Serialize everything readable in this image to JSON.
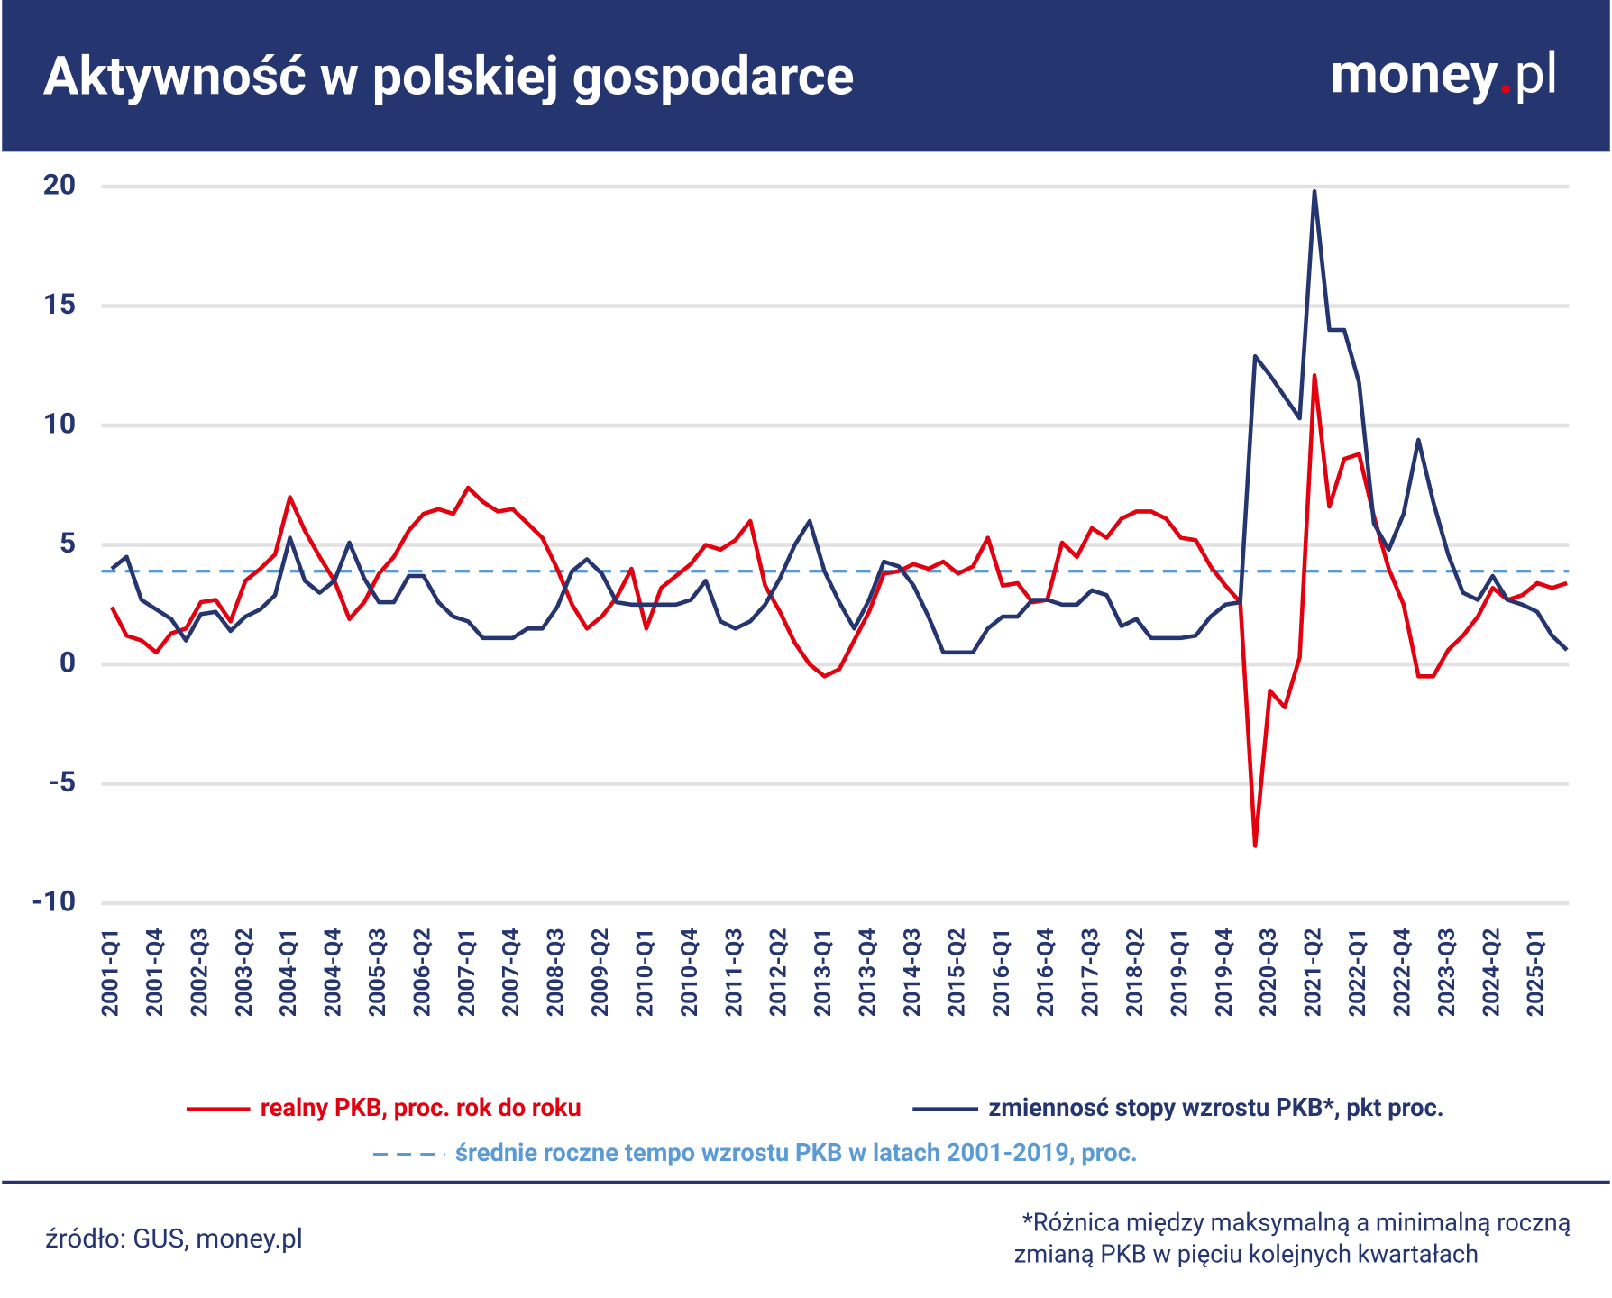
{
  "chart_data": {
    "type": "line",
    "title": "Aktywność w polskiej gospodarce",
    "logo": [
      "money",
      ".",
      "pl"
    ],
    "categories": [
      "2001-Q1",
      null,
      null,
      "2001-Q4",
      null,
      null,
      "2002-Q3",
      null,
      null,
      "2003-Q2",
      null,
      null,
      "2004-Q1",
      null,
      null,
      "2004-Q4",
      null,
      null,
      "2005-Q3",
      null,
      null,
      "2006-Q2",
      null,
      null,
      "2007-Q1",
      null,
      null,
      "2007-Q4",
      null,
      null,
      "2008-Q3",
      null,
      null,
      "2009-Q2",
      null,
      null,
      "2010-Q1",
      null,
      null,
      "2010-Q4",
      null,
      null,
      "2011-Q3",
      null,
      null,
      "2012-Q2",
      null,
      null,
      "2013-Q1",
      null,
      null,
      "2013-Q4",
      null,
      null,
      "2014-Q3",
      null,
      null,
      "2015-Q2",
      null,
      null,
      "2016-Q1",
      null,
      null,
      "2016-Q4",
      null,
      null,
      "2017-Q3",
      null,
      null,
      "2018-Q2",
      null,
      null,
      "2019-Q1",
      null,
      null,
      "2019-Q4",
      null,
      null,
      "2020-Q3",
      null,
      null,
      "2021-Q2",
      null,
      null,
      "2022-Q1",
      null,
      null,
      "2022-Q4",
      null,
      null,
      "2023-Q3",
      null,
      null,
      "2024-Q2",
      null,
      null,
      "2025-Q1",
      null,
      null
    ],
    "series": [
      {
        "name": "realny PKB, proc. rok do roku",
        "color": "#e3000f",
        "values": [
          2.4,
          1.2,
          1.0,
          0.5,
          1.3,
          1.5,
          2.6,
          2.7,
          1.8,
          3.5,
          4.0,
          4.6,
          7.0,
          5.6,
          4.5,
          3.5,
          1.9,
          2.6,
          3.8,
          4.5,
          5.6,
          6.3,
          6.5,
          6.3,
          7.4,
          6.8,
          6.4,
          6.5,
          5.9,
          5.3,
          4.0,
          2.5,
          1.5,
          2.0,
          2.8,
          4.0,
          1.5,
          3.2,
          3.7,
          4.2,
          5.0,
          4.8,
          5.2,
          6.0,
          3.3,
          2.2,
          0.9,
          0.0,
          -0.5,
          -0.2,
          1.0,
          2.2,
          3.8,
          3.9,
          4.2,
          4.0,
          4.3,
          3.8,
          4.1,
          5.3,
          3.3,
          3.4,
          2.6,
          2.7,
          5.1,
          4.5,
          5.7,
          5.3,
          6.1,
          6.4,
          6.4,
          6.1,
          5.3,
          5.2,
          4.1,
          3.3,
          2.6,
          -7.6,
          -1.1,
          -1.8,
          0.3,
          12.1,
          6.6,
          8.6,
          8.8,
          6.2,
          4.0,
          2.5,
          -0.5,
          -0.5,
          0.6,
          1.2,
          2.0,
          3.2,
          2.7,
          2.9,
          3.4,
          3.2,
          3.4
        ]
      },
      {
        "name": "zmiennosć stopy wzrostu PKB*, pkt proc.",
        "color": "#253570",
        "values": [
          4.0,
          4.5,
          2.7,
          2.3,
          1.9,
          1.0,
          2.1,
          2.2,
          1.4,
          2.0,
          2.3,
          2.9,
          5.3,
          3.5,
          3.0,
          3.5,
          5.1,
          3.6,
          2.6,
          2.6,
          3.7,
          3.7,
          2.6,
          2.0,
          1.8,
          1.1,
          1.1,
          1.1,
          1.5,
          1.5,
          2.4,
          3.9,
          4.4,
          3.8,
          2.6,
          2.5,
          2.5,
          2.5,
          2.5,
          2.7,
          3.5,
          1.8,
          1.5,
          1.8,
          2.5,
          3.6,
          5.0,
          6.0,
          3.9,
          2.6,
          1.5,
          2.7,
          4.3,
          4.1,
          3.3,
          2.0,
          0.5,
          0.5,
          0.5,
          1.5,
          2.0,
          2.0,
          2.7,
          2.7,
          2.5,
          2.5,
          3.1,
          2.9,
          1.6,
          1.9,
          1.1,
          1.1,
          1.1,
          1.2,
          2.0,
          2.5,
          2.6,
          12.9,
          12.1,
          11.2,
          10.3,
          19.8,
          14.0,
          14.0,
          11.8,
          5.9,
          4.8,
          6.3,
          9.4,
          6.8,
          4.6,
          3.0,
          2.7,
          3.7,
          2.7,
          2.5,
          2.2,
          1.2,
          0.6
        ]
      }
    ],
    "hlines": [
      {
        "name": "średnie roczne tempo wzrostu PKB w latach 2001-2019, proc.",
        "value": 3.9,
        "color": "#5b9bd5",
        "dashed": true
      }
    ],
    "ylim": [
      -10,
      20
    ],
    "yticks": [
      -10,
      -5,
      0,
      5,
      10,
      15,
      20
    ],
    "grid": true,
    "source": "źródło: GUS, money.pl",
    "note": [
      "*Różnica między maksymalną a minimalną roczną",
      "zmianą PKB w pięciu kolejnych kwartałach"
    ]
  }
}
